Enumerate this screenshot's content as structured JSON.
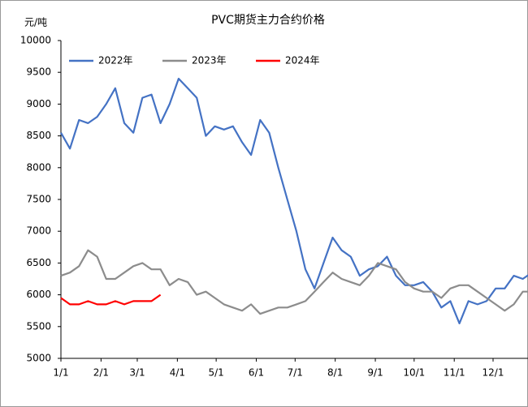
{
  "chart_data": {
    "type": "line",
    "title": "PVC期货主力合约价格",
    "y_label": "元/吨",
    "x": [
      0,
      7,
      14,
      21,
      28,
      35,
      42,
      49,
      56,
      63,
      70,
      77,
      84,
      91,
      98,
      105,
      112,
      119,
      126,
      133,
      140,
      147,
      154,
      161,
      168,
      175,
      182,
      189,
      196,
      203,
      210,
      217,
      224,
      231,
      238,
      245,
      252,
      259,
      266,
      273,
      280,
      287,
      294,
      301,
      308,
      315,
      322,
      329,
      336,
      343,
      350,
      357,
      364
    ],
    "xlim": [
      0,
      361
    ],
    "xticks": [
      {
        "value": 0,
        "label": "1/1"
      },
      {
        "value": 31,
        "label": "2/1"
      },
      {
        "value": 59,
        "label": "3/1"
      },
      {
        "value": 90,
        "label": "4/1"
      },
      {
        "value": 120,
        "label": "5/1"
      },
      {
        "value": 151,
        "label": "6/1"
      },
      {
        "value": 181,
        "label": "7/1"
      },
      {
        "value": 212,
        "label": "8/1"
      },
      {
        "value": 243,
        "label": "9/1"
      },
      {
        "value": 273,
        "label": "10/1"
      },
      {
        "value": 304,
        "label": "11/1"
      },
      {
        "value": 334,
        "label": "12/1"
      }
    ],
    "ylim": [
      5000,
      10000
    ],
    "yticks": [
      5000,
      5500,
      6000,
      6500,
      7000,
      7500,
      8000,
      8500,
      9000,
      9500,
      10000
    ],
    "legend": "upper left",
    "series": [
      {
        "name": "2022年",
        "color": "#4472c4",
        "values": [
          8550,
          8300,
          8750,
          8700,
          8800,
          9000,
          9250,
          8700,
          8550,
          9100,
          9150,
          8700,
          9000,
          9400,
          9250,
          9100,
          8500,
          8650,
          8600,
          8650,
          8400,
          8200,
          8750,
          8550,
          8000,
          7500,
          7000,
          6400,
          6100,
          6500,
          6900,
          6700,
          6600,
          6300,
          6400,
          6450,
          6600,
          6300,
          6150,
          6150,
          6200,
          6050,
          5800,
          5900,
          5550,
          5900,
          5850,
          5900,
          6100,
          6100,
          6300,
          6250,
          6350
        ]
      },
      {
        "name": "2023年",
        "color": "#8c8c8c",
        "values": [
          6300,
          6350,
          6450,
          6700,
          6600,
          6250,
          6250,
          6350,
          6450,
          6500,
          6400,
          6400,
          6150,
          6250,
          6200,
          6000,
          6050,
          5950,
          5850,
          5800,
          5750,
          5850,
          5700,
          5750,
          5800,
          5800,
          5850,
          5900,
          6050,
          6200,
          6350,
          6250,
          6200,
          6150,
          6300,
          6500,
          6450,
          6400,
          6200,
          6100,
          6050,
          6050,
          5950,
          6100,
          6150,
          6150,
          6050,
          5950,
          5850,
          5750,
          5850,
          6050,
          6050
        ]
      },
      {
        "name": "2024年",
        "color": "#ff0000",
        "values": [
          5950,
          5850,
          5850,
          5900,
          5850,
          5850,
          5900,
          5850,
          5900,
          5900,
          5900,
          6000,
          null,
          null,
          null,
          null,
          null,
          null,
          null,
          null,
          null,
          null,
          null,
          null,
          null,
          null,
          null,
          null,
          null,
          null,
          null,
          null,
          null,
          null,
          null,
          null,
          null,
          null,
          null,
          null,
          null,
          null,
          null,
          null,
          null,
          null,
          null,
          null,
          null,
          null,
          null,
          null,
          null
        ]
      }
    ]
  }
}
